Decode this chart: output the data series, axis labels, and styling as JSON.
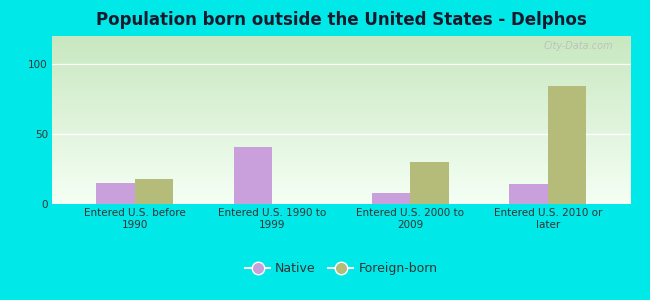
{
  "title": "Population born outside the United States - Delphos",
  "categories": [
    "Entered U.S. before\n1990",
    "Entered U.S. 1990 to\n1999",
    "Entered U.S. 2000 to\n2009",
    "Entered U.S. 2010 or\nlater"
  ],
  "native_values": [
    15,
    41,
    8,
    14
  ],
  "foreign_values": [
    18,
    0,
    30,
    84
  ],
  "native_color": "#c9a0dc",
  "foreign_color": "#b5bc7a",
  "bg_color": "#00e8e8",
  "grad_top": "#f5fff5",
  "grad_bottom": "#c8e8c0",
  "ylim": [
    0,
    120
  ],
  "yticks": [
    0,
    50,
    100
  ],
  "bar_width": 0.28,
  "watermark": "City-Data.com",
  "title_fontsize": 12,
  "tick_fontsize": 7.5,
  "legend_fontsize": 9
}
